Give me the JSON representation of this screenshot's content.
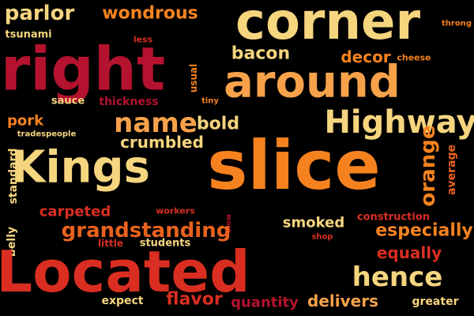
{
  "palette": {
    "background": "#000000",
    "cream": "#f6d57f",
    "light_orange": "#f7a24a",
    "orange": "#f5821f",
    "dark_orange": "#e8621e",
    "red": "#d92e21",
    "crimson": "#b4122e",
    "dark_red": "#8b1a1a"
  },
  "words": [
    {
      "text": "parlor",
      "size": 26,
      "color": "#f6d57f",
      "rotate": 0
    },
    {
      "text": "tsunami",
      "size": 13,
      "color": "#f6d57f",
      "rotate": 0
    },
    {
      "text": "wondrous",
      "size": 22,
      "color": "#f5821f",
      "rotate": 0
    },
    {
      "text": "corner",
      "size": 64,
      "color": "#f6d57f",
      "rotate": 0
    },
    {
      "text": "throng",
      "size": 10,
      "color": "#f5821f",
      "rotate": 0
    },
    {
      "text": "right",
      "size": 76,
      "color": "#b4122e",
      "rotate": 0
    },
    {
      "text": "less",
      "size": 11,
      "color": "#d92e21",
      "rotate": 0
    },
    {
      "text": "bacon",
      "size": 22,
      "color": "#f6d57f",
      "rotate": 0
    },
    {
      "text": "decor",
      "size": 20,
      "color": "#f5821f",
      "rotate": 0
    },
    {
      "text": "cheese",
      "size": 11,
      "color": "#f5821f",
      "rotate": 0
    },
    {
      "text": "around",
      "size": 56,
      "color": "#f7a24a",
      "rotate": 0
    },
    {
      "text": "usual",
      "size": 12,
      "color": "#f5821f",
      "rotate": -90
    },
    {
      "text": "tiny",
      "size": 10,
      "color": "#f5821f",
      "rotate": 0
    },
    {
      "text": "sauce",
      "size": 13,
      "color": "#f6d57f",
      "rotate": 0
    },
    {
      "text": "thickness",
      "size": 14,
      "color": "#b4122e",
      "rotate": 0
    },
    {
      "text": "pork",
      "size": 18,
      "color": "#f5821f",
      "rotate": 0
    },
    {
      "text": "name",
      "size": 34,
      "color": "#f7a24a",
      "rotate": 0
    },
    {
      "text": "bold",
      "size": 22,
      "color": "#f6d57f",
      "rotate": 0
    },
    {
      "text": "Highway",
      "size": 40,
      "color": "#f6d57f",
      "rotate": 0
    },
    {
      "text": "tradespeople",
      "size": 10,
      "color": "#f6d57f",
      "rotate": 0
    },
    {
      "text": "crumbled",
      "size": 20,
      "color": "#f6d57f",
      "rotate": 0
    },
    {
      "text": "Kings",
      "size": 56,
      "color": "#f6d57f",
      "rotate": 0
    },
    {
      "text": "slice",
      "size": 86,
      "color": "#f5821f",
      "rotate": 0
    },
    {
      "text": "orange",
      "size": 26,
      "color": "#f5821f",
      "rotate": -90
    },
    {
      "text": "average",
      "size": 14,
      "color": "#e8621e",
      "rotate": -90
    },
    {
      "text": "belly",
      "size": 14,
      "color": "#f6d57f",
      "rotate": -90
    },
    {
      "text": "standard",
      "size": 14,
      "color": "#f6d57f",
      "rotate": -90
    },
    {
      "text": "carpeted",
      "size": 18,
      "color": "#d92e21",
      "rotate": 0
    },
    {
      "text": "workers",
      "size": 11,
      "color": "#d92e21",
      "rotate": 0
    },
    {
      "text": "blow",
      "size": 9,
      "color": "#b4122e",
      "rotate": -90
    },
    {
      "text": "smoked",
      "size": 18,
      "color": "#f6d57f",
      "rotate": 0
    },
    {
      "text": "construction",
      "size": 13,
      "color": "#d92e21",
      "rotate": 0
    },
    {
      "text": "grandstanding",
      "size": 26,
      "color": "#e8621e",
      "rotate": 0
    },
    {
      "text": "especially",
      "size": 22,
      "color": "#f5821f",
      "rotate": 0
    },
    {
      "text": "little",
      "size": 12,
      "color": "#d92e21",
      "rotate": 0
    },
    {
      "text": "students",
      "size": 13,
      "color": "#f6d57f",
      "rotate": 0
    },
    {
      "text": "shop",
      "size": 10,
      "color": "#d92e21",
      "rotate": 0
    },
    {
      "text": "Located",
      "size": 72,
      "color": "#d92e21",
      "rotate": 0
    },
    {
      "text": "equally",
      "size": 20,
      "color": "#d92e21",
      "rotate": 0
    },
    {
      "text": "hence",
      "size": 34,
      "color": "#f6d57f",
      "rotate": 0
    },
    {
      "text": "expect",
      "size": 14,
      "color": "#f6d57f",
      "rotate": 0
    },
    {
      "text": "flavor",
      "size": 22,
      "color": "#d92e21",
      "rotate": 0
    },
    {
      "text": "quantity",
      "size": 18,
      "color": "#b4122e",
      "rotate": 0
    },
    {
      "text": "delivers",
      "size": 20,
      "color": "#f7a24a",
      "rotate": 0
    },
    {
      "text": "greater",
      "size": 14,
      "color": "#f6d57f",
      "rotate": 0
    }
  ]
}
